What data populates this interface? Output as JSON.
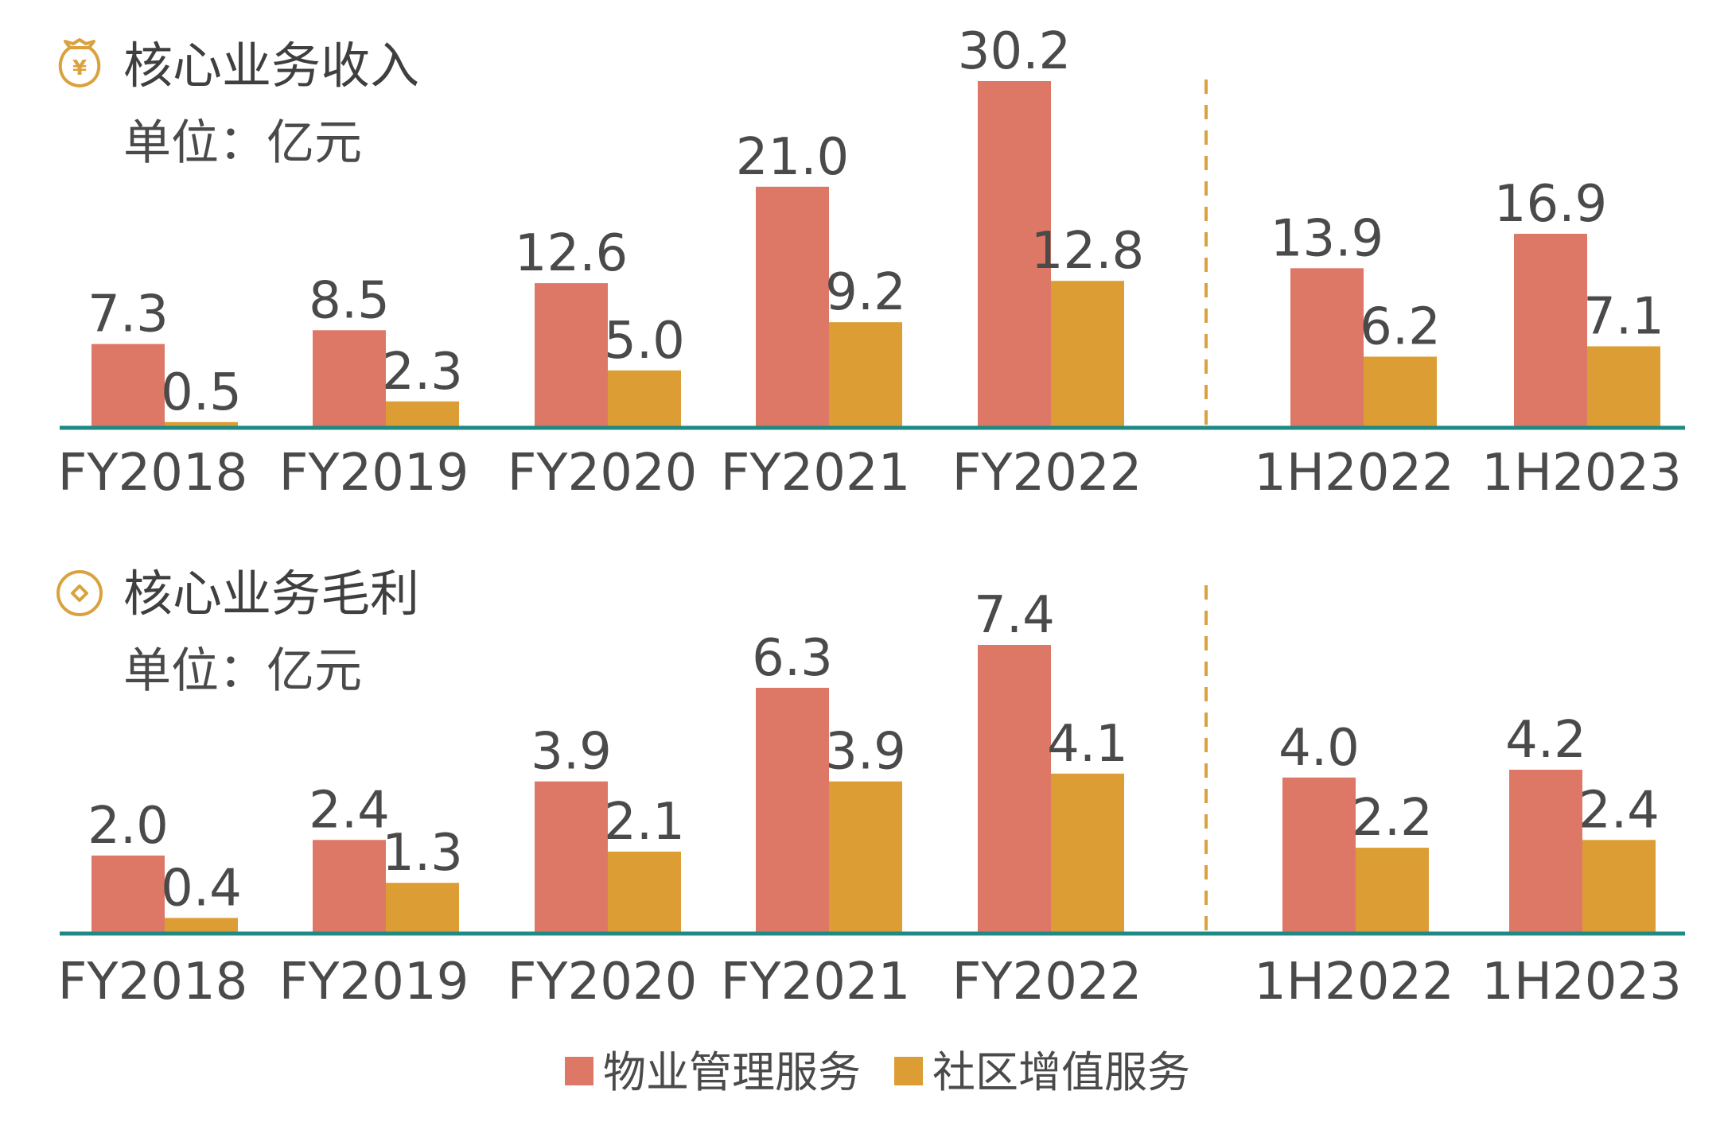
{
  "colors": {
    "property_management": "#DE7866",
    "community_value_added": "#DC9E34",
    "axis_line": "#1F8A84",
    "divider": "#D9A23E",
    "icon": "#D9A23E"
  },
  "legend": {
    "items": [
      {
        "label": "物业管理服务",
        "color": "#DE7866"
      },
      {
        "label": "社区增值服务",
        "color": "#DC9E34"
      }
    ]
  },
  "chart_data": [
    {
      "type": "bar",
      "title": "核心业务收入",
      "subtitle": "单位：亿元",
      "icon": "money-bag-yuan-icon",
      "categories": [
        "FY2018",
        "FY2019",
        "FY2020",
        "FY2021",
        "FY2022",
        "1H2022",
        "1H2023"
      ],
      "series": [
        {
          "name": "物业管理服务",
          "values": [
            7.3,
            8.5,
            12.6,
            21.0,
            30.2,
            13.9,
            16.9
          ],
          "labels": [
            "7.3",
            "8.5",
            "12.6",
            "21.0",
            "30.2",
            "13.9",
            "16.9"
          ]
        },
        {
          "name": "社区增值服务",
          "values": [
            0.5,
            2.3,
            5.0,
            9.2,
            12.8,
            6.2,
            7.1
          ],
          "labels": [
            "0.5",
            "2.3",
            "5.0",
            "9.2",
            "12.8",
            "6.2",
            "7.1"
          ]
        }
      ],
      "ylim": [
        0,
        30.2
      ],
      "grid": false,
      "divider_after_category": "FY2022"
    },
    {
      "type": "bar",
      "title": "核心业务毛利",
      "subtitle": "单位：亿元",
      "icon": "coin-diamond-icon",
      "categories": [
        "FY2018",
        "FY2019",
        "FY2020",
        "FY2021",
        "FY2022",
        "1H2022",
        "1H2023"
      ],
      "series": [
        {
          "name": "物业管理服务",
          "values": [
            2.0,
            2.4,
            3.9,
            6.3,
            7.4,
            4.0,
            4.2
          ],
          "labels": [
            "2.0",
            "2.4",
            "3.9",
            "6.3",
            "7.4",
            "4.0",
            "4.2"
          ]
        },
        {
          "name": "社区增值服务",
          "values": [
            0.4,
            1.3,
            2.1,
            3.9,
            4.1,
            2.2,
            2.4
          ],
          "labels": [
            "0.4",
            "1.3",
            "2.1",
            "3.9",
            "4.1",
            "2.2",
            "2.4"
          ]
        }
      ],
      "ylim": [
        0,
        7.4
      ],
      "grid": false,
      "divider_after_category": "FY2022"
    }
  ]
}
